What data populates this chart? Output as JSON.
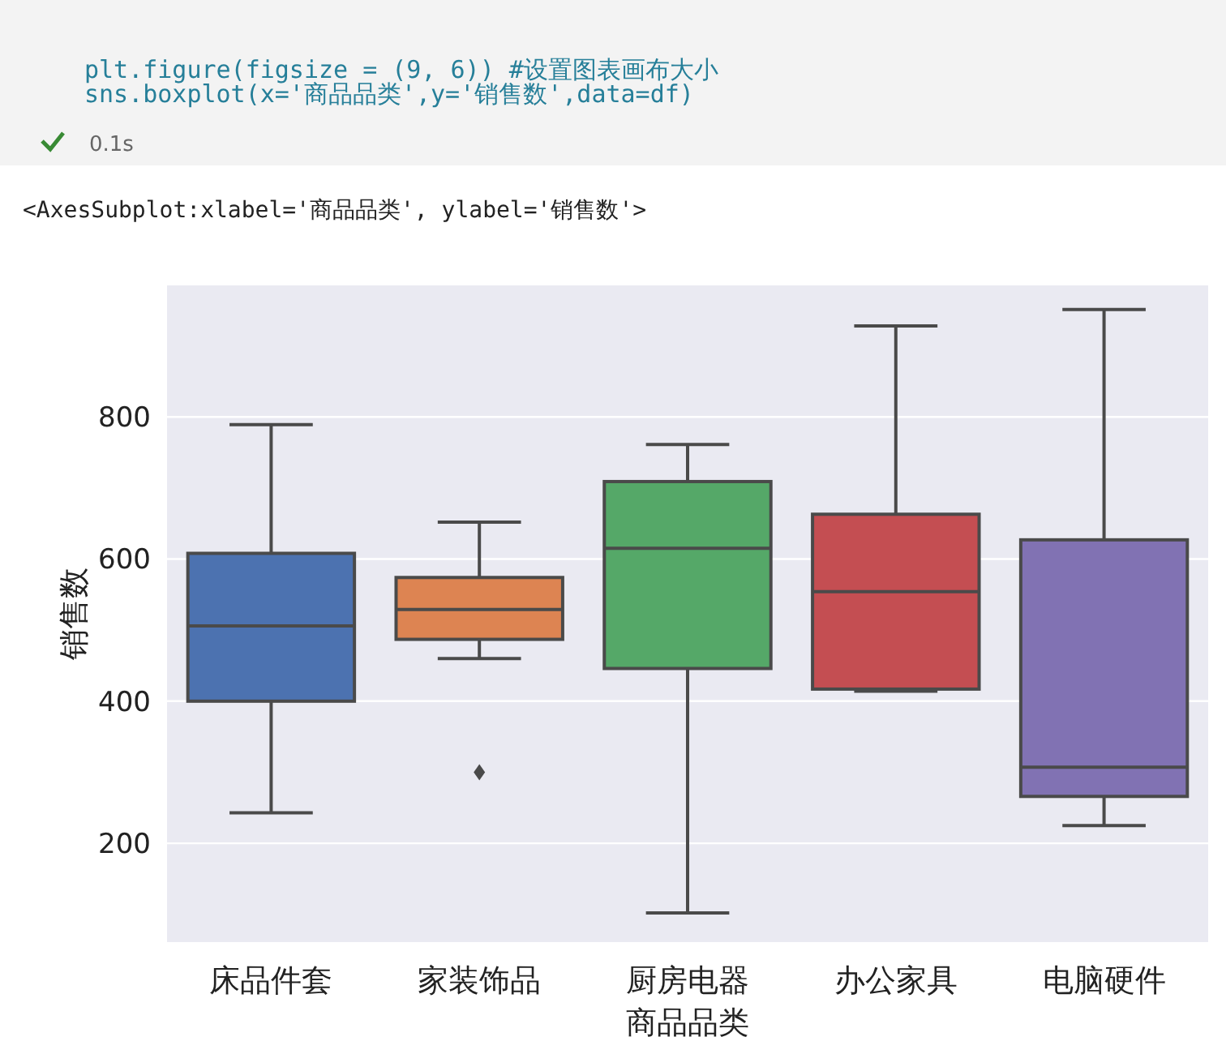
{
  "chart_data": {
    "type": "box",
    "xlabel": "商品品类",
    "ylabel": "销售数",
    "annotations": [
      "plt.figure(figsize = (9, 6)) #设置图表画布大小",
      "sns.boxplot(x='商品品类',y='销售数',data=df)",
      "0.1s",
      "<AxesSubplot:xlabel='商品品类', ylabel='销售数'>"
    ],
    "categories": [
      "床品件套",
      "家装饰品",
      "厨房电器",
      "办公家具",
      "电脑硬件"
    ],
    "colors": [
      "#4c72b0",
      "#dd8452",
      "#55a868",
      "#c44e52",
      "#8172b3"
    ],
    "boxes": [
      {
        "low": 243,
        "q1": 400,
        "median": 506,
        "q3": 608,
        "high": 789
      },
      {
        "low": 460,
        "q1": 487,
        "median": 529,
        "q3": 574,
        "high": 652,
        "outliers": [
          300
        ]
      },
      {
        "low": 102,
        "q1": 446,
        "median": 615,
        "q3": 709,
        "high": 761
      },
      {
        "low": 414,
        "q1": 417,
        "median": 554,
        "q3": 663,
        "high": 928
      },
      {
        "low": 225,
        "q1": 266,
        "median": 307,
        "q3": 627,
        "high": 951
      }
    ],
    "ylim": [
      61,
      985
    ],
    "yticks": [
      200,
      400,
      600,
      800
    ],
    "grid": "y"
  }
}
